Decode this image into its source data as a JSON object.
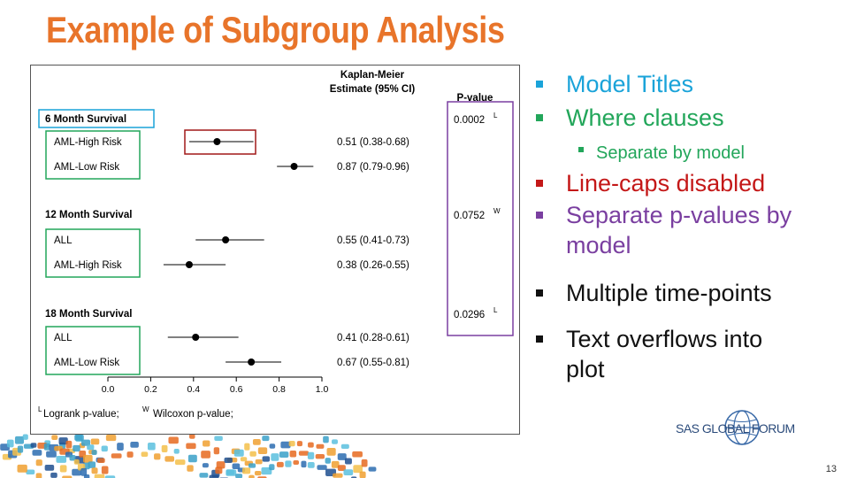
{
  "slide": {
    "title": "Example of Subgroup Analysis",
    "page_number": "13",
    "logo_text": "SAS GLOBAL FORUM"
  },
  "bullets": [
    {
      "text": "Model Titles",
      "color": "#1AA3D9",
      "level": 1
    },
    {
      "text": "Where clauses",
      "color": "#22A65A",
      "level": 1
    },
    {
      "text": "Separate by model",
      "color": "#22A65A",
      "level": 2
    },
    {
      "text": "Line-caps disabled",
      "color": "#C41818",
      "level": 1
    },
    {
      "text": "Separate p-values by",
      "color": "#7A3FA0",
      "level": 1
    },
    {
      "text": "model",
      "color": "#7A3FA0",
      "level": 0
    },
    {
      "text": "Multiple time-points",
      "color": "#111111",
      "level": 1
    },
    {
      "text": "Text overflows into",
      "color": "#111111",
      "level": 1
    },
    {
      "text": "plot",
      "color": "#111111",
      "level": 0
    }
  ],
  "chart_data": {
    "type": "scatter",
    "title": "",
    "column_headers": {
      "estimate_line1": "Kaplan-Meier",
      "estimate_line2": "Estimate (95% CI)",
      "pvalue": "P-value"
    },
    "xlim": [
      0.0,
      1.0
    ],
    "xticks": [
      "0.0",
      "0.2",
      "0.4",
      "0.6",
      "0.8",
      "1.0"
    ],
    "groups": [
      {
        "label": "6 Month Survival",
        "pvalue": "0.0002",
        "pvalue_sup": "L",
        "rows": [
          {
            "label": "AML-High Risk",
            "estimate": 0.51,
            "lower": 0.38,
            "upper": 0.68,
            "text": "0.51 (0.38-0.68)"
          },
          {
            "label": "AML-Low Risk",
            "estimate": 0.87,
            "lower": 0.79,
            "upper": 0.96,
            "text": "0.87 (0.79-0.96)"
          }
        ]
      },
      {
        "label": "12 Month Survival",
        "pvalue": "0.0752",
        "pvalue_sup": "W",
        "rows": [
          {
            "label": "ALL",
            "estimate": 0.55,
            "lower": 0.41,
            "upper": 0.73,
            "text": "0.55 (0.41-0.73)"
          },
          {
            "label": "AML-High Risk",
            "estimate": 0.38,
            "lower": 0.26,
            "upper": 0.55,
            "text": "0.38 (0.26-0.55)"
          }
        ]
      },
      {
        "label": "18 Month Survival",
        "pvalue": "0.0296",
        "pvalue_sup": "L",
        "rows": [
          {
            "label": "ALL",
            "estimate": 0.41,
            "lower": 0.28,
            "upper": 0.61,
            "text": "0.41 (0.28-0.61)"
          },
          {
            "label": "AML-Low Risk",
            "estimate": 0.67,
            "lower": 0.55,
            "upper": 0.81,
            "text": "0.67 (0.55-0.81)"
          }
        ]
      }
    ],
    "footnote": {
      "sup1": "L",
      "part1": "Logrank p-value; ",
      "sup2": "W",
      "part2": "Wilcoxon p-value;"
    },
    "highlight_colors": {
      "model_title": "#1AA3D9",
      "where_clause": "#22A65A",
      "line_caps": "#A01818",
      "pvalues": "#7A3FA0"
    }
  }
}
